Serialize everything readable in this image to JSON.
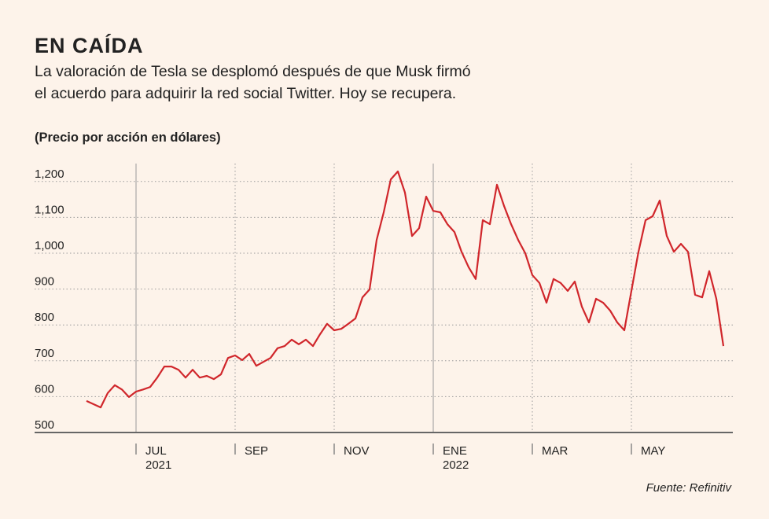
{
  "chart_data": {
    "type": "line",
    "title": "EN CAÍDA",
    "subtitle": [
      "La valoración de Tesla se desplomó después de que Musk firmó",
      "el acuerdo para adquirir la red social Twitter. Hoy se recupera."
    ],
    "y_label": "(Precio por acción en dólares)",
    "source": "Fuente: Refinitiv",
    "categories": [
      null,
      null,
      null,
      null,
      null,
      null,
      null,
      "JUL 2021",
      null,
      null,
      null,
      null,
      null,
      null,
      null,
      null,
      null,
      null,
      null,
      null,
      null,
      "SEP",
      null,
      null,
      null,
      null,
      null,
      null,
      null,
      null,
      null,
      null,
      null,
      null,
      null,
      "NOV",
      null,
      null,
      null,
      null,
      null,
      null,
      null,
      null,
      null,
      null,
      null,
      null,
      null,
      "ENE 2022",
      null,
      null,
      null,
      null,
      null,
      null,
      null,
      null,
      null,
      null,
      null,
      null,
      null,
      "MAR",
      null,
      null,
      null,
      null,
      null,
      null,
      null,
      null,
      null,
      null,
      null,
      null,
      null,
      "MAY",
      null,
      null,
      null,
      null,
      null,
      null,
      null,
      null,
      null,
      null,
      null,
      null,
      null
    ],
    "series": [
      {
        "name": "Tesla",
        "color": "#d0262b",
        "values": [
          588,
          579,
          570,
          610,
          632,
          620,
          599,
          614,
          620,
          627,
          653,
          684,
          684,
          675,
          653,
          675,
          653,
          658,
          649,
          662,
          708,
          715,
          702,
          719,
          686,
          697,
          708,
          735,
          741,
          759,
          746,
          759,
          741,
          774,
          803,
          785,
          789,
          803,
          818,
          877,
          899,
          1037,
          1114,
          1206,
          1228,
          1169,
          1048,
          1070,
          1158,
          1118,
          1114,
          1081,
          1059,
          1004,
          961,
          928,
          1092,
          1081,
          1191,
          1132,
          1081,
          1037,
          1000,
          939,
          917,
          862,
          928,
          917,
          895,
          921,
          851,
          807,
          873,
          862,
          840,
          807,
          785,
          895,
          1004,
          1092,
          1103,
          1147,
          1048,
          1004,
          1026,
          1004,
          884,
          877,
          950,
          873,
          741
        ]
      }
    ],
    "ylim": [
      500,
      1250
    ],
    "yticks": [
      500,
      600,
      700,
      800,
      900,
      {
        "value": 1000,
        "label": "1,000"
      },
      {
        "value": 1100,
        "label": "1,100"
      },
      {
        "value": 1200,
        "label": "1,200"
      }
    ],
    "grid": true
  }
}
